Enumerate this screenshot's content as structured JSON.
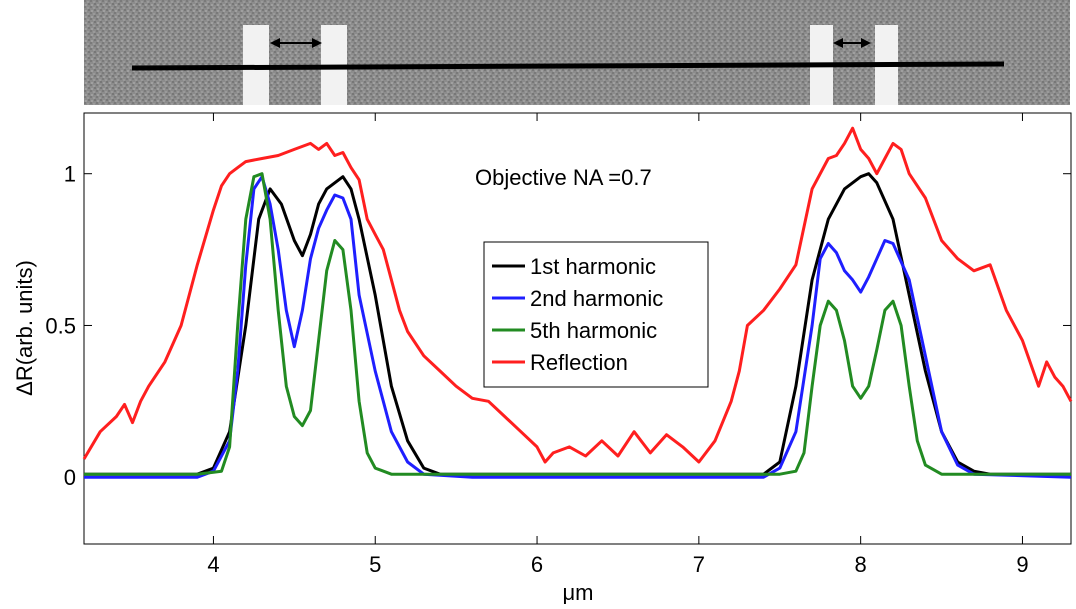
{
  "chart_data": {
    "type": "line",
    "title": "",
    "annotation": "Objective NA =0.7",
    "xlabel": "μm",
    "ylabel": "ΔR(arb. units)",
    "xlim": [
      3.2,
      9.3
    ],
    "ylim": [
      -0.22,
      1.2
    ],
    "xticks": [
      4,
      5,
      6,
      7,
      8,
      9
    ],
    "xtick_labels": [
      "4",
      "5",
      "6",
      "7",
      "8",
      "9"
    ],
    "yticks": [
      0,
      0.5,
      1
    ],
    "ytick_labels": [
      "0",
      "0.5",
      "1"
    ],
    "grid": false,
    "legend_position": "center",
    "series": [
      {
        "name": "1st harmonic",
        "color": "#000000",
        "x": [
          3.2,
          3.6,
          3.9,
          4.0,
          4.1,
          4.2,
          4.28,
          4.35,
          4.42,
          4.5,
          4.55,
          4.6,
          4.65,
          4.7,
          4.75,
          4.8,
          4.85,
          4.9,
          5.0,
          5.1,
          5.2,
          5.3,
          5.4,
          5.6,
          6.0,
          6.5,
          7.0,
          7.4,
          7.5,
          7.6,
          7.7,
          7.8,
          7.9,
          8.0,
          8.05,
          8.1,
          8.2,
          8.3,
          8.4,
          8.5,
          8.6,
          8.7,
          8.8,
          9.3
        ],
        "y": [
          0.01,
          0.01,
          0.01,
          0.03,
          0.15,
          0.5,
          0.85,
          0.95,
          0.9,
          0.78,
          0.73,
          0.8,
          0.9,
          0.95,
          0.97,
          0.99,
          0.95,
          0.85,
          0.6,
          0.3,
          0.12,
          0.03,
          0.01,
          0.01,
          0.01,
          0.01,
          0.01,
          0.01,
          0.05,
          0.3,
          0.65,
          0.85,
          0.95,
          0.99,
          1.0,
          0.97,
          0.85,
          0.6,
          0.35,
          0.15,
          0.05,
          0.02,
          0.01,
          0.01
        ]
      },
      {
        "name": "2nd harmonic",
        "color": "#1f1fff",
        "x": [
          3.2,
          3.6,
          3.9,
          4.0,
          4.1,
          4.15,
          4.2,
          4.25,
          4.3,
          4.35,
          4.4,
          4.45,
          4.5,
          4.55,
          4.6,
          4.65,
          4.7,
          4.75,
          4.8,
          4.85,
          4.9,
          5.0,
          5.1,
          5.2,
          5.3,
          5.6,
          6.0,
          6.5,
          7.0,
          7.4,
          7.5,
          7.6,
          7.7,
          7.75,
          7.8,
          7.85,
          7.9,
          7.95,
          8.0,
          8.05,
          8.1,
          8.15,
          8.2,
          8.3,
          8.4,
          8.5,
          8.6,
          8.7,
          9.3
        ],
        "y": [
          0.0,
          0.0,
          0.0,
          0.02,
          0.12,
          0.35,
          0.7,
          0.95,
          0.99,
          0.9,
          0.75,
          0.55,
          0.43,
          0.55,
          0.72,
          0.82,
          0.88,
          0.93,
          0.92,
          0.85,
          0.6,
          0.35,
          0.15,
          0.05,
          0.01,
          0.0,
          0.0,
          0.0,
          0.0,
          0.0,
          0.03,
          0.15,
          0.5,
          0.72,
          0.77,
          0.74,
          0.68,
          0.65,
          0.61,
          0.66,
          0.72,
          0.78,
          0.77,
          0.65,
          0.4,
          0.15,
          0.04,
          0.01,
          0.0
        ]
      },
      {
        "name": "5th harmonic",
        "color": "#228b22",
        "x": [
          3.2,
          3.6,
          3.9,
          4.05,
          4.1,
          4.15,
          4.2,
          4.25,
          4.3,
          4.35,
          4.4,
          4.45,
          4.5,
          4.55,
          4.6,
          4.65,
          4.7,
          4.75,
          4.8,
          4.85,
          4.9,
          4.95,
          5.0,
          5.1,
          5.3,
          6.0,
          6.5,
          7.0,
          7.5,
          7.6,
          7.65,
          7.7,
          7.75,
          7.8,
          7.85,
          7.9,
          7.95,
          8.0,
          8.05,
          8.1,
          8.15,
          8.2,
          8.25,
          8.3,
          8.35,
          8.4,
          8.5,
          9.3
        ],
        "y": [
          0.01,
          0.01,
          0.01,
          0.02,
          0.1,
          0.5,
          0.85,
          0.99,
          1.0,
          0.85,
          0.55,
          0.3,
          0.2,
          0.17,
          0.22,
          0.45,
          0.68,
          0.78,
          0.75,
          0.55,
          0.25,
          0.08,
          0.03,
          0.01,
          0.01,
          0.01,
          0.01,
          0.01,
          0.01,
          0.02,
          0.08,
          0.3,
          0.5,
          0.58,
          0.55,
          0.45,
          0.3,
          0.26,
          0.3,
          0.42,
          0.55,
          0.58,
          0.5,
          0.3,
          0.12,
          0.04,
          0.01,
          0.01
        ]
      },
      {
        "name": "Reflection",
        "color": "#ff1f1f",
        "x": [
          3.2,
          3.3,
          3.4,
          3.45,
          3.5,
          3.55,
          3.6,
          3.7,
          3.8,
          3.9,
          4.0,
          4.05,
          4.1,
          4.15,
          4.2,
          4.3,
          4.4,
          4.5,
          4.6,
          4.65,
          4.7,
          4.75,
          4.8,
          4.85,
          4.9,
          4.95,
          5.0,
          5.05,
          5.1,
          5.15,
          5.2,
          5.3,
          5.4,
          5.5,
          5.6,
          5.7,
          5.8,
          5.9,
          6.0,
          6.05,
          6.1,
          6.2,
          6.3,
          6.4,
          6.5,
          6.6,
          6.7,
          6.8,
          6.9,
          7.0,
          7.1,
          7.2,
          7.25,
          7.3,
          7.4,
          7.5,
          7.6,
          7.7,
          7.8,
          7.85,
          7.9,
          7.95,
          8.0,
          8.05,
          8.1,
          8.15,
          8.2,
          8.25,
          8.3,
          8.4,
          8.5,
          8.6,
          8.7,
          8.8,
          8.9,
          9.0,
          9.1,
          9.15,
          9.2,
          9.25,
          9.3
        ],
        "y": [
          0.06,
          0.15,
          0.2,
          0.24,
          0.18,
          0.25,
          0.3,
          0.38,
          0.5,
          0.7,
          0.88,
          0.96,
          1.0,
          1.02,
          1.04,
          1.05,
          1.06,
          1.08,
          1.1,
          1.08,
          1.1,
          1.06,
          1.07,
          1.02,
          0.98,
          0.85,
          0.8,
          0.75,
          0.65,
          0.55,
          0.48,
          0.4,
          0.35,
          0.3,
          0.26,
          0.25,
          0.2,
          0.15,
          0.1,
          0.05,
          0.08,
          0.1,
          0.07,
          0.12,
          0.07,
          0.15,
          0.08,
          0.14,
          0.1,
          0.05,
          0.12,
          0.25,
          0.35,
          0.5,
          0.55,
          0.62,
          0.7,
          0.95,
          1.05,
          1.06,
          1.1,
          1.15,
          1.08,
          1.05,
          1.0,
          1.05,
          1.1,
          1.08,
          1.0,
          0.92,
          0.78,
          0.72,
          0.68,
          0.7,
          0.55,
          0.45,
          0.3,
          0.38,
          0.33,
          0.3,
          0.25
        ]
      }
    ]
  },
  "inset_image": {
    "description_colors": {
      "background": "#8a8a8a",
      "bar": "#f0f0f0",
      "line": "#000000"
    }
  }
}
